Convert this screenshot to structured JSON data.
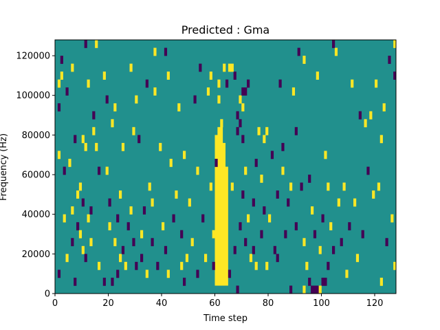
{
  "chart_data": {
    "type": "heatmap",
    "title": "Predicted : Gma",
    "xlabel": "Time step",
    "ylabel": "Frequency (Hz)",
    "xlim": [
      0,
      128
    ],
    "ylim": [
      0,
      128000
    ],
    "x_ticks": [
      "0",
      "20",
      "40",
      "60",
      "80",
      "100",
      "120"
    ],
    "x_tick_values": [
      0,
      20,
      40,
      60,
      80,
      100,
      120
    ],
    "y_ticks": [
      "0",
      "20000",
      "40000",
      "60000",
      "80000",
      "100000",
      "120000"
    ],
    "y_tick_values": [
      0,
      20000,
      40000,
      60000,
      80000,
      100000,
      120000
    ],
    "colormap": "viridis",
    "colors": {
      "background": "#21908d",
      "high": "#fde725",
      "low": "#440154"
    },
    "value_levels": {
      "low": 0,
      "background": 0.5,
      "high": 1
    },
    "frequency_bin_hz": 4000,
    "background_value": 0.5,
    "bands": [
      {
        "value": 1,
        "x0": 60,
        "x1": 62,
        "y0": 4000,
        "y1": 80000
      },
      {
        "value": 1,
        "x0": 61,
        "x1": 63,
        "y0": 4000,
        "y1": 84000
      },
      {
        "value": 1,
        "x0": 62,
        "x1": 64,
        "y0": 4000,
        "y1": 76000
      },
      {
        "value": 1,
        "x0": 63,
        "x1": 65,
        "y0": 4000,
        "y1": 64000
      }
    ],
    "cells": [
      [
        1,
        104000,
        1
      ],
      [
        1,
        8000,
        0
      ],
      [
        1,
        68000,
        1
      ],
      [
        1,
        92000,
        0
      ],
      [
        2,
        116000,
        0
      ],
      [
        2,
        108000,
        1
      ],
      [
        3,
        60000,
        0
      ],
      [
        3,
        36000,
        1
      ],
      [
        4,
        16000,
        1
      ],
      [
        4,
        100000,
        0
      ],
      [
        5,
        64000,
        1
      ],
      [
        6,
        112000,
        1
      ],
      [
        6,
        40000,
        1
      ],
      [
        6,
        24000,
        0
      ],
      [
        7,
        76000,
        0
      ],
      [
        7,
        4000,
        0
      ],
      [
        8,
        32000,
        0
      ],
      [
        8,
        48000,
        1
      ],
      [
        9,
        28000,
        1
      ],
      [
        9,
        52000,
        1
      ],
      [
        10,
        44000,
        0
      ],
      [
        10,
        20000,
        1
      ],
      [
        10,
        76000,
        1
      ],
      [
        11,
        16000,
        0
      ],
      [
        11,
        72000,
        1
      ],
      [
        11,
        124000,
        0
      ],
      [
        12,
        104000,
        1
      ],
      [
        12,
        36000,
        1
      ],
      [
        13,
        40000,
        0
      ],
      [
        13,
        24000,
        1
      ],
      [
        14,
        80000,
        1
      ],
      [
        14,
        88000,
        0
      ],
      [
        15,
        124000,
        1
      ],
      [
        15,
        72000,
        1
      ],
      [
        16,
        60000,
        0
      ],
      [
        16,
        12000,
        1
      ],
      [
        18,
        108000,
        1
      ],
      [
        18,
        4000,
        0
      ],
      [
        19,
        60000,
        1
      ],
      [
        19,
        96000,
        0
      ],
      [
        20,
        32000,
        1
      ],
      [
        20,
        44000,
        0
      ],
      [
        21,
        4000,
        0
      ],
      [
        21,
        84000,
        1
      ],
      [
        22,
        24000,
        1
      ],
      [
        22,
        92000,
        1
      ],
      [
        23,
        36000,
        0
      ],
      [
        23,
        8000,
        0
      ],
      [
        24,
        16000,
        1
      ],
      [
        24,
        48000,
        1
      ],
      [
        25,
        72000,
        1
      ],
      [
        25,
        20000,
        0
      ],
      [
        26,
        12000,
        1
      ],
      [
        27,
        32000,
        0
      ],
      [
        28,
        40000,
        1
      ],
      [
        28,
        112000,
        1
      ],
      [
        29,
        24000,
        0
      ],
      [
        29,
        80000,
        1
      ],
      [
        30,
        12000,
        0
      ],
      [
        30,
        96000,
        1
      ],
      [
        31,
        76000,
        0
      ],
      [
        32,
        28000,
        1
      ],
      [
        32,
        16000,
        0
      ],
      [
        33,
        40000,
        0
      ],
      [
        34,
        104000,
        0
      ],
      [
        34,
        8000,
        1
      ],
      [
        35,
        52000,
        1
      ],
      [
        36,
        44000,
        1
      ],
      [
        36,
        24000,
        0
      ],
      [
        37,
        120000,
        1
      ],
      [
        37,
        100000,
        1
      ],
      [
        38,
        12000,
        0
      ],
      [
        39,
        72000,
        1
      ],
      [
        40,
        32000,
        1
      ],
      [
        41,
        20000,
        0
      ],
      [
        41,
        120000,
        0
      ],
      [
        42,
        108000,
        1
      ],
      [
        42,
        8000,
        1
      ],
      [
        43,
        64000,
        1
      ],
      [
        44,
        36000,
        0
      ],
      [
        45,
        48000,
        1
      ],
      [
        46,
        92000,
        1
      ],
      [
        47,
        28000,
        0
      ],
      [
        47,
        12000,
        1
      ],
      [
        48,
        68000,
        1
      ],
      [
        48,
        4000,
        0
      ],
      [
        49,
        16000,
        1
      ],
      [
        50,
        44000,
        1
      ],
      [
        51,
        24000,
        1
      ],
      [
        52,
        96000,
        0
      ],
      [
        53,
        60000,
        1
      ],
      [
        53,
        8000,
        0
      ],
      [
        54,
        112000,
        0
      ],
      [
        55,
        36000,
        0
      ],
      [
        56,
        16000,
        1
      ],
      [
        57,
        100000,
        1
      ],
      [
        58,
        52000,
        1
      ],
      [
        58,
        108000,
        1
      ],
      [
        59,
        12000,
        0
      ],
      [
        59,
        28000,
        1
      ],
      [
        60,
        64000,
        0
      ],
      [
        61,
        96000,
        1
      ],
      [
        61,
        104000,
        1
      ],
      [
        62,
        84000,
        1
      ],
      [
        63,
        112000,
        1
      ],
      [
        64,
        104000,
        0
      ],
      [
        65,
        8000,
        0
      ],
      [
        66,
        52000,
        1
      ],
      [
        67,
        20000,
        0
      ],
      [
        67,
        108000,
        0
      ],
      [
        68,
        0,
        0
      ],
      [
        68,
        80000,
        0
      ],
      [
        69,
        32000,
        0
      ],
      [
        69,
        96000,
        1
      ],
      [
        70,
        76000,
        0
      ],
      [
        70,
        48000,
        0
      ],
      [
        70,
        100000,
        0
      ],
      [
        71,
        24000,
        0
      ],
      [
        71,
        60000,
        1
      ],
      [
        71,
        100000,
        0
      ],
      [
        72,
        36000,
        1
      ],
      [
        72,
        104000,
        0
      ],
      [
        73,
        16000,
        1
      ],
      [
        74,
        44000,
        0
      ],
      [
        74,
        20000,
        0
      ],
      [
        75,
        12000,
        1
      ],
      [
        75,
        64000,
        0
      ],
      [
        76,
        80000,
        1
      ],
      [
        77,
        28000,
        0
      ],
      [
        77,
        56000,
        1
      ],
      [
        78,
        40000,
        0
      ],
      [
        78,
        76000,
        1
      ],
      [
        79,
        12000,
        1
      ],
      [
        79,
        80000,
        1
      ],
      [
        80,
        36000,
        1
      ],
      [
        81,
        68000,
        0
      ],
      [
        82,
        20000,
        0
      ],
      [
        83,
        48000,
        0
      ],
      [
        83,
        16000,
        0
      ],
      [
        84,
        104000,
        0
      ],
      [
        85,
        60000,
        1
      ],
      [
        85,
        72000,
        0
      ],
      [
        86,
        28000,
        0
      ],
      [
        87,
        44000,
        0
      ],
      [
        88,
        0,
        0
      ],
      [
        88,
        52000,
        1
      ],
      [
        89,
        100000,
        1
      ],
      [
        90,
        32000,
        0
      ],
      [
        90,
        80000,
        0
      ],
      [
        91,
        120000,
        0
      ],
      [
        92,
        52000,
        0
      ],
      [
        93,
        24000,
        1
      ],
      [
        93,
        116000,
        1
      ],
      [
        94,
        12000,
        1
      ],
      [
        95,
        4000,
        0
      ],
      [
        95,
        56000,
        0
      ],
      [
        96,
        40000,
        1
      ],
      [
        97,
        0,
        0
      ],
      [
        97,
        28000,
        0
      ],
      [
        98,
        108000,
        1
      ],
      [
        99,
        20000,
        1
      ],
      [
        100,
        36000,
        0
      ],
      [
        100,
        4000,
        0
      ],
      [
        101,
        68000,
        1
      ],
      [
        102,
        12000,
        0
      ],
      [
        102,
        52000,
        1
      ],
      [
        103,
        32000,
        1
      ],
      [
        104,
        124000,
        0
      ],
      [
        104,
        20000,
        0
      ],
      [
        105,
        120000,
        1
      ],
      [
        106,
        44000,
        1
      ],
      [
        107,
        24000,
        0
      ],
      [
        108,
        52000,
        1
      ],
      [
        109,
        8000,
        1
      ],
      [
        110,
        32000,
        0
      ],
      [
        111,
        104000,
        1
      ],
      [
        112,
        44000,
        1
      ],
      [
        113,
        16000,
        1
      ],
      [
        114,
        88000,
        0
      ],
      [
        115,
        28000,
        0
      ],
      [
        116,
        84000,
        1
      ],
      [
        117,
        60000,
        0
      ],
      [
        118,
        88000,
        1
      ],
      [
        119,
        48000,
        1
      ],
      [
        120,
        104000,
        1
      ],
      [
        121,
        52000,
        1
      ],
      [
        122,
        76000,
        1
      ],
      [
        122,
        4000,
        1
      ],
      [
        123,
        92000,
        1
      ],
      [
        124,
        24000,
        0
      ],
      [
        125,
        116000,
        0
      ],
      [
        126,
        36000,
        1
      ],
      [
        127,
        108000,
        0
      ],
      [
        127,
        12000,
        1
      ],
      [
        127,
        124000,
        1
      ],
      [
        96,
        0,
        0
      ],
      [
        98,
        0,
        0
      ],
      [
        99,
        0,
        1
      ],
      [
        93,
        0,
        1
      ],
      [
        101,
        4000,
        0
      ],
      [
        66,
        112000,
        1
      ],
      [
        65,
        112000,
        1
      ],
      [
        68,
        88000,
        0
      ],
      [
        69,
        84000,
        0
      ],
      [
        70,
        92000,
        1
      ]
    ]
  }
}
